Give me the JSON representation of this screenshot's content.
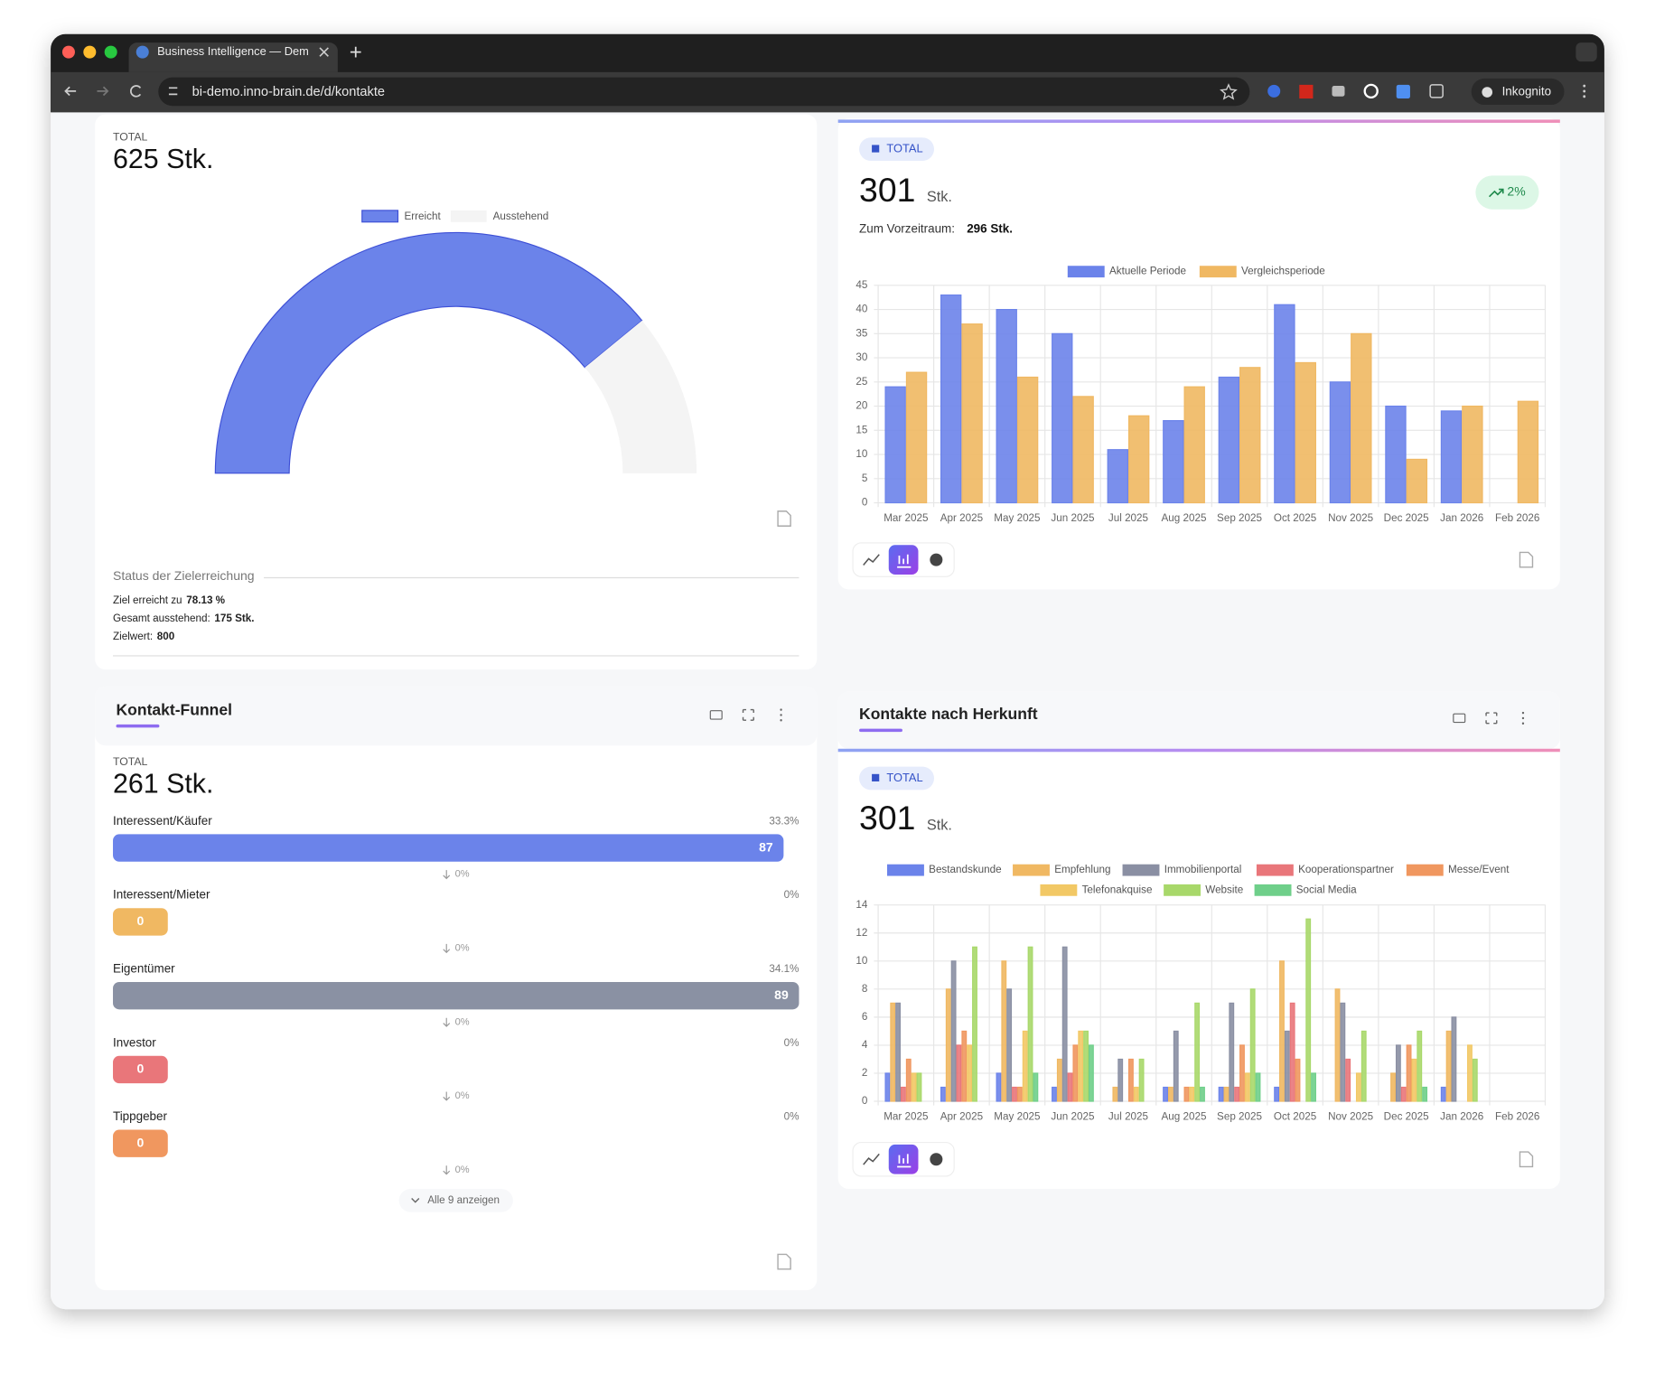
{
  "browser": {
    "tab_title": "Business Intelligence — Dem",
    "url": "bi-demo.inno-brain.de/d/kontakte",
    "profile": "Inkognito"
  },
  "goal_widget": {
    "total_label": "TOTAL",
    "total": "625 Stk.",
    "chart": {
      "type": "gauge",
      "series": [
        {
          "name": "Erreicht",
          "color": "#6b83ea",
          "value": 625
        },
        {
          "name": "Ausstehend",
          "color": "#f4f4f4",
          "value": 175
        }
      ]
    },
    "status_title": "Status der Zielerreichung",
    "status_lines": [
      {
        "label": "Ziel erreicht zu",
        "value": "78.13 %"
      },
      {
        "label": "Gesamt ausstehend:",
        "value": "175 Stk."
      },
      {
        "label": "Zielwert:",
        "value": "800"
      }
    ]
  },
  "comparison_widget": {
    "badge": "TOTAL",
    "total": "301",
    "unit": "Stk.",
    "change": "2%",
    "previous_label": "Zum Vorzeitraum:",
    "previous": "296 Stk.",
    "chart": {
      "type": "bar",
      "categories": [
        "Mar 2025",
        "Apr 2025",
        "May 2025",
        "Jun 2025",
        "Jul 2025",
        "Aug 2025",
        "Sep 2025",
        "Oct 2025",
        "Nov 2025",
        "Dec 2025",
        "Jan 2026",
        "Feb 2026"
      ],
      "series": [
        {
          "name": "Aktuelle Periode",
          "color": "#6b83ea",
          "values": [
            24,
            43,
            40,
            35,
            11,
            17,
            26,
            41,
            25,
            20,
            19,
            0
          ]
        },
        {
          "name": "Vergleichsperiode",
          "color": "#f0b862",
          "values": [
            27,
            37,
            26,
            22,
            18,
            24,
            28,
            29,
            35,
            9,
            20,
            21
          ]
        }
      ],
      "ylim": [
        0,
        45
      ],
      "yticks": [
        0,
        5,
        10,
        15,
        20,
        25,
        30,
        35,
        40,
        45
      ],
      "grid": true
    }
  },
  "funnel_widget": {
    "title": "Kontakt-Funnel",
    "total_label": "TOTAL",
    "total": "261 Stk.",
    "stages": [
      {
        "label": "Interessent/Käufer",
        "value": 87,
        "share": "33.3%",
        "color": "#6b83ea"
      },
      {
        "label": "Interessent/Mieter",
        "value": 0,
        "share": "0%",
        "color": "#f0b862"
      },
      {
        "label": "Eigentümer",
        "value": 89,
        "share": "34.1%",
        "color": "#8a91a3"
      },
      {
        "label": "Investor",
        "value": 0,
        "share": "0%",
        "color": "#e9767a"
      },
      {
        "label": "Tippgeber",
        "value": 0,
        "share": "0%",
        "color": "#f0975f"
      }
    ],
    "steps": [
      "0%",
      "0%",
      "0%",
      "0%",
      "0%"
    ],
    "show_all": "Alle 9 anzeigen"
  },
  "source_widget": {
    "title": "Kontakte nach Herkunft",
    "badge": "TOTAL",
    "total": "301",
    "unit": "Stk.",
    "chart": {
      "type": "bar",
      "categories": [
        "Mar 2025",
        "Apr 2025",
        "May 2025",
        "Jun 2025",
        "Jul 2025",
        "Aug 2025",
        "Sep 2025",
        "Oct 2025",
        "Nov 2025",
        "Dec 2025",
        "Jan 2026",
        "Feb 2026"
      ],
      "series": [
        {
          "name": "Bestandskunde",
          "color": "#6b83ea",
          "values": [
            2,
            1,
            2,
            1,
            0,
            1,
            1,
            1,
            0,
            0,
            1,
            0
          ]
        },
        {
          "name": "Empfehlung",
          "color": "#f0b862",
          "values": [
            7,
            8,
            10,
            3,
            1,
            1,
            1,
            10,
            8,
            2,
            5,
            0
          ]
        },
        {
          "name": "Immobilienportal",
          "color": "#8a8fa3",
          "values": [
            7,
            10,
            8,
            11,
            3,
            5,
            7,
            5,
            7,
            4,
            6,
            0
          ]
        },
        {
          "name": "Kooperationspartner",
          "color": "#e9767a",
          "values": [
            1,
            4,
            1,
            2,
            0,
            0,
            1,
            7,
            3,
            1,
            0,
            0
          ]
        },
        {
          "name": "Messe/Event",
          "color": "#f0975f",
          "values": [
            3,
            5,
            1,
            4,
            3,
            1,
            4,
            3,
            0,
            4,
            0,
            0
          ]
        },
        {
          "name": "Telefonakquise",
          "color": "#f2c865",
          "values": [
            2,
            4,
            5,
            5,
            1,
            1,
            2,
            0,
            2,
            3,
            4,
            0
          ]
        },
        {
          "name": "Website",
          "color": "#a8d86a",
          "values": [
            2,
            11,
            11,
            5,
            3,
            7,
            8,
            13,
            5,
            5,
            3,
            0
          ]
        },
        {
          "name": "Social Media",
          "color": "#6fcf8a",
          "values": [
            0,
            0,
            2,
            4,
            0,
            1,
            2,
            2,
            0,
            1,
            0,
            0
          ]
        }
      ],
      "ylim": [
        0,
        14
      ],
      "yticks": [
        0,
        2,
        4,
        6,
        8,
        10,
        12,
        14
      ],
      "grid": true
    }
  }
}
